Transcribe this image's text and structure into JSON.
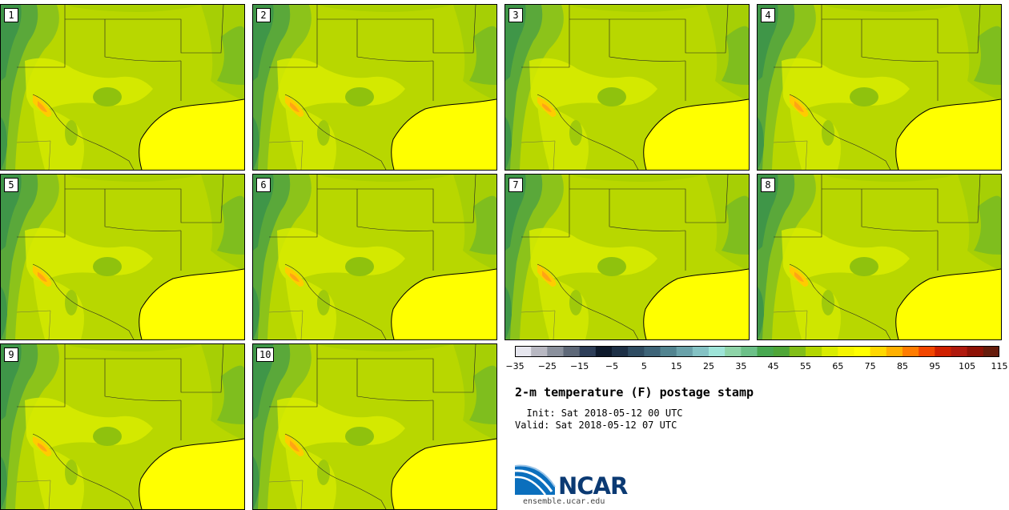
{
  "panels": [
    {
      "label": "1"
    },
    {
      "label": "2"
    },
    {
      "label": "3"
    },
    {
      "label": "4"
    },
    {
      "label": "5"
    },
    {
      "label": "6"
    },
    {
      "label": "7"
    },
    {
      "label": "8"
    },
    {
      "label": "9"
    },
    {
      "label": "10"
    }
  ],
  "colorbar": {
    "colors": [
      "#e6e6ee",
      "#b8b8c2",
      "#8a909c",
      "#5e6878",
      "#2e3e58",
      "#0e1a2c",
      "#1e3046",
      "#2f4c62",
      "#3e6478",
      "#528490",
      "#6aa2aa",
      "#84c2c4",
      "#9ee4d8",
      "#8ed4a8",
      "#6cc088",
      "#48a850",
      "#4fa638",
      "#82be18",
      "#b2d600",
      "#d9ec00",
      "#f5f500",
      "#ffff00",
      "#ffd800",
      "#ffb000",
      "#ff7c00",
      "#f24600",
      "#cf2000",
      "#b01a0e",
      "#8e1206",
      "#661c0c"
    ],
    "labels": [
      "−35",
      "−25",
      "−15",
      "−5",
      "5",
      "15",
      "25",
      "35",
      "45",
      "55",
      "65",
      "75",
      "85",
      "95",
      "105",
      "115"
    ]
  },
  "title": "2-m temperature (F) postage stamp",
  "init": "  Init: Sat 2018-05-12 00 UTC",
  "valid": "Valid: Sat 2018-05-12 07 UTC",
  "logo": {
    "name": "NCAR",
    "url": "ensemble.ucar.edu"
  }
}
